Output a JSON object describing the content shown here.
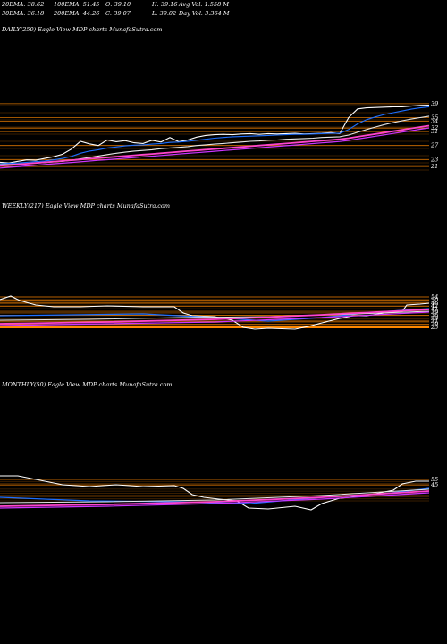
{
  "header": {
    "row1": [
      "20EMA: 38.62",
      "100EMA: 51.45",
      "O: 39.10",
      "H: 39.16",
      "Avg Vol: 1.558  M"
    ],
    "row2": [
      "30EMA: 36.18",
      "200EMA: 44.26",
      "C: 39.07",
      "L: 39.02",
      "Day Vol: 3.364  M"
    ]
  },
  "colors": {
    "background": "#000000",
    "price": "#ffffff",
    "ema_blue": "#1e6fff",
    "ema_pink": "#ff44cc",
    "ema_magenta": "#cc33ff",
    "ema_white": "#e8e8e8",
    "grid_orange": "#ff8800"
  },
  "chart_data": [
    {
      "type": "line",
      "title": "DAILY(250) Eagle   View  MDP charts MunafaSutra.com",
      "price_labels": [
        "39",
        "35",
        "34",
        "32",
        "31",
        "27",
        "23",
        "21"
      ],
      "x": [
        0,
        10,
        20,
        30,
        40,
        50,
        60,
        70,
        80,
        90,
        100,
        110,
        120,
        130,
        140,
        150,
        160,
        170,
        180,
        190,
        200,
        210,
        220,
        230,
        240,
        250,
        260,
        270,
        280,
        290,
        300,
        310,
        320,
        330,
        340,
        350,
        360,
        370,
        380,
        390,
        400,
        410,
        420,
        430,
        440,
        450,
        460,
        470,
        480
      ],
      "series": [
        {
          "values": [
            22.2,
            22.0,
            22.5,
            22.9,
            22.8,
            23.3,
            23.8,
            24.5,
            26.0,
            28.2,
            27.5,
            27.0,
            28.6,
            28.1,
            28.4,
            27.8,
            27.6,
            28.5,
            28.0,
            29.3,
            28.1,
            28.6,
            29.4,
            29.9,
            30.1,
            30.2,
            30.1,
            30.3,
            30.4,
            30.2,
            30.4,
            30.3,
            30.4,
            30.5,
            30.3,
            30.4,
            30.5,
            30.7,
            30.4,
            35.0,
            37.5,
            37.8,
            37.9,
            38.0,
            38.1,
            38.1,
            38.3,
            38.5,
            38.6
          ]
        },
        {
          "values": [
            21.8,
            21.9,
            22.0,
            22.2,
            22.4,
            22.6,
            22.9,
            23.3,
            23.9,
            24.8,
            25.4,
            25.8,
            26.3,
            26.6,
            26.9,
            27.1,
            27.2,
            27.4,
            27.6,
            27.9,
            28.0,
            28.2,
            28.5,
            28.8,
            29.1,
            29.3,
            29.5,
            29.6,
            29.7,
            29.8,
            29.9,
            30.0,
            30.1,
            30.2,
            30.2,
            30.3,
            30.4,
            30.5,
            30.5,
            31.6,
            33.2,
            34.4,
            35.2,
            35.9,
            36.4,
            36.9,
            37.4,
            37.8,
            38.1
          ]
        },
        {
          "values": [
            21.5,
            21.6,
            21.7,
            21.8,
            22.0,
            22.1,
            22.3,
            22.5,
            22.8,
            23.2,
            23.6,
            24.0,
            24.4,
            24.8,
            25.1,
            25.4,
            25.6,
            25.8,
            26.1,
            26.3,
            26.5,
            26.7,
            27.0,
            27.2,
            27.4,
            27.6,
            27.8,
            28.0,
            28.2,
            28.3,
            28.5,
            28.6,
            28.8,
            28.9,
            29.0,
            29.1,
            29.3,
            29.4,
            29.5,
            30.0,
            30.8,
            31.6,
            32.3,
            33.0,
            33.6,
            34.1,
            34.6,
            35.0,
            35.4
          ]
        },
        {
          "values": [
            21.2,
            21.4,
            21.6,
            21.8,
            22.0,
            22.2,
            22.4,
            22.6,
            22.8,
            23.0,
            23.2,
            23.4,
            23.6,
            23.8,
            24.0,
            24.2,
            24.4,
            24.6,
            24.8,
            25.0,
            25.2,
            25.4,
            25.6,
            25.8,
            26.0,
            26.2,
            26.4,
            26.6,
            26.8,
            27.0,
            27.2,
            27.4,
            27.6,
            27.8,
            28.0,
            28.2,
            28.4,
            28.6,
            28.8,
            29.1,
            29.5,
            29.9,
            30.3,
            30.7,
            31.1,
            31.5,
            31.9,
            32.3,
            32.7
          ]
        }
      ]
    },
    {
      "type": "line",
      "title": "WEEKLY(217) Eagle   View  MDP charts MunafaSutra.com",
      "price_labels": [
        "54",
        "50",
        "46",
        "42",
        "41",
        "39",
        "36",
        "33",
        "31",
        "29",
        "25"
      ]
    },
    {
      "type": "line",
      "title": "MONTHLY(50) Eagle   View  MDP charts MunafaSutra.com",
      "price_labels": [
        "55",
        "45"
      ]
    }
  ]
}
